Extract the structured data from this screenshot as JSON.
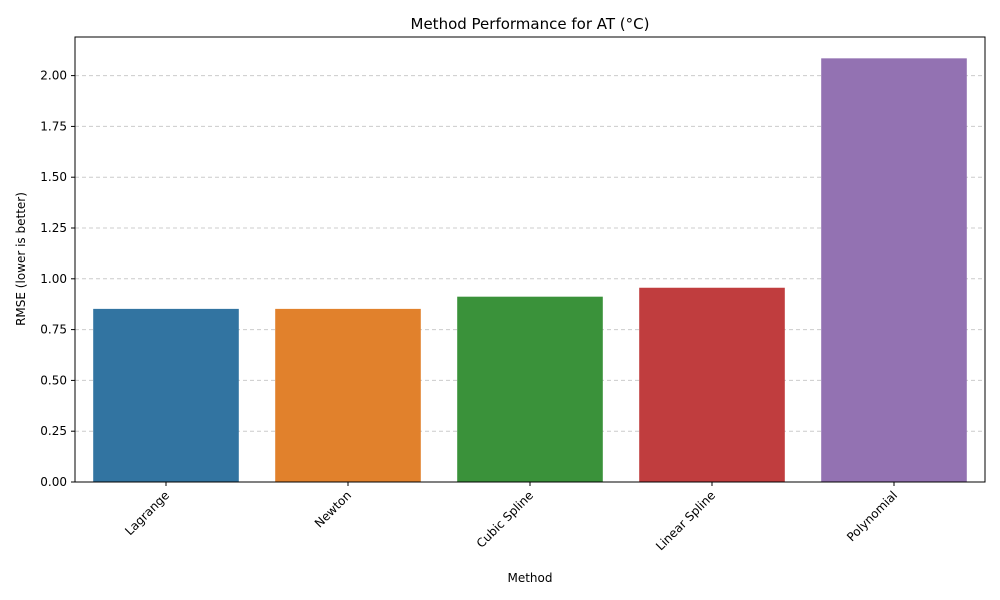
{
  "chart_data": {
    "type": "bar",
    "title": "Method Performance for AT (°C)",
    "xlabel": "Method",
    "ylabel": "RMSE (lower is better)",
    "categories": [
      "Lagrange",
      "Newton",
      "Cubic Spline",
      "Linear Spline",
      "Polynomial"
    ],
    "values": [
      0.852,
      0.852,
      0.912,
      0.956,
      2.085
    ],
    "colors": [
      "#3274a1",
      "#e1812c",
      "#3a923a",
      "#c03d3e",
      "#9372b2"
    ],
    "ylim": [
      0,
      2.19
    ],
    "yticks": [
      "0.00",
      "0.25",
      "0.50",
      "0.75",
      "1.00",
      "1.25",
      "1.50",
      "1.75",
      "2.00"
    ],
    "grid": "y-dashed",
    "legend": "none"
  }
}
